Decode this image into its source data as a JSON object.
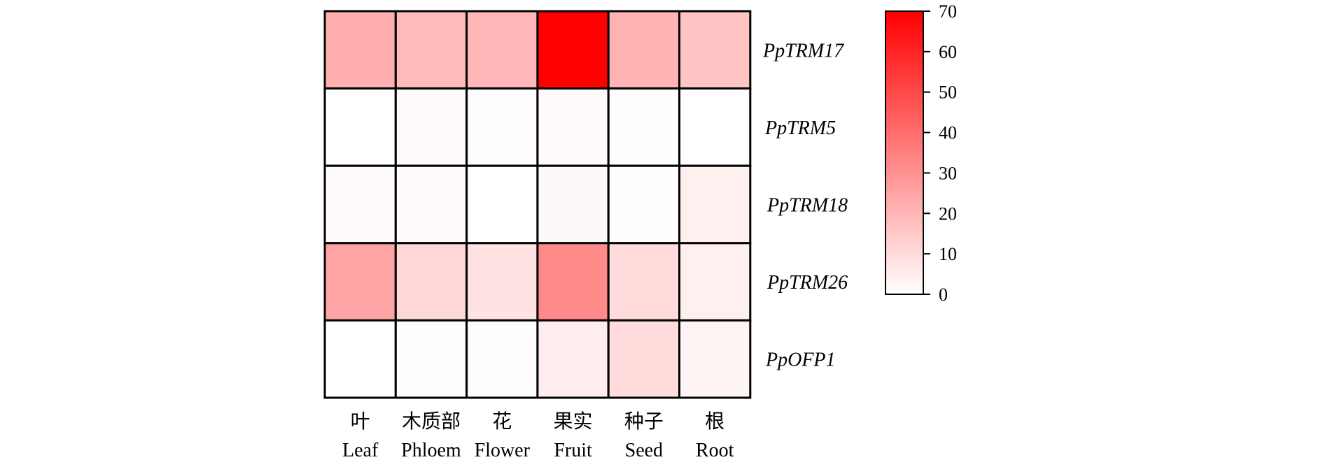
{
  "chart_data": {
    "type": "heatmap",
    "rows": [
      "PpTRM17",
      "PpTRM5",
      "PpTRM18",
      "PpTRM26",
      "PpOFP1"
    ],
    "columns": [
      {
        "zh": "叶",
        "en": "Leaf"
      },
      {
        "zh": "木质部",
        "en": "Phloem"
      },
      {
        "zh": "花",
        "en": "Flower"
      },
      {
        "zh": "果实",
        "en": "Fruit"
      },
      {
        "zh": "种子",
        "en": "Seed"
      },
      {
        "zh": "根",
        "en": "Root"
      }
    ],
    "values": [
      [
        22,
        19,
        20,
        70,
        21,
        16
      ],
      [
        0,
        1,
        0.5,
        1,
        0.3,
        0
      ],
      [
        1,
        1.5,
        0,
        2,
        0.3,
        4
      ],
      [
        25,
        11,
        8,
        32,
        10,
        4
      ],
      [
        0,
        0.8,
        0.5,
        5,
        10,
        3
      ]
    ],
    "colorbar": {
      "min": 0,
      "max": 70,
      "ticks": [
        0,
        10,
        20,
        30,
        40,
        50,
        60,
        70
      ],
      "color_min": "#ffffff",
      "color_max": "#ff0000"
    }
  }
}
